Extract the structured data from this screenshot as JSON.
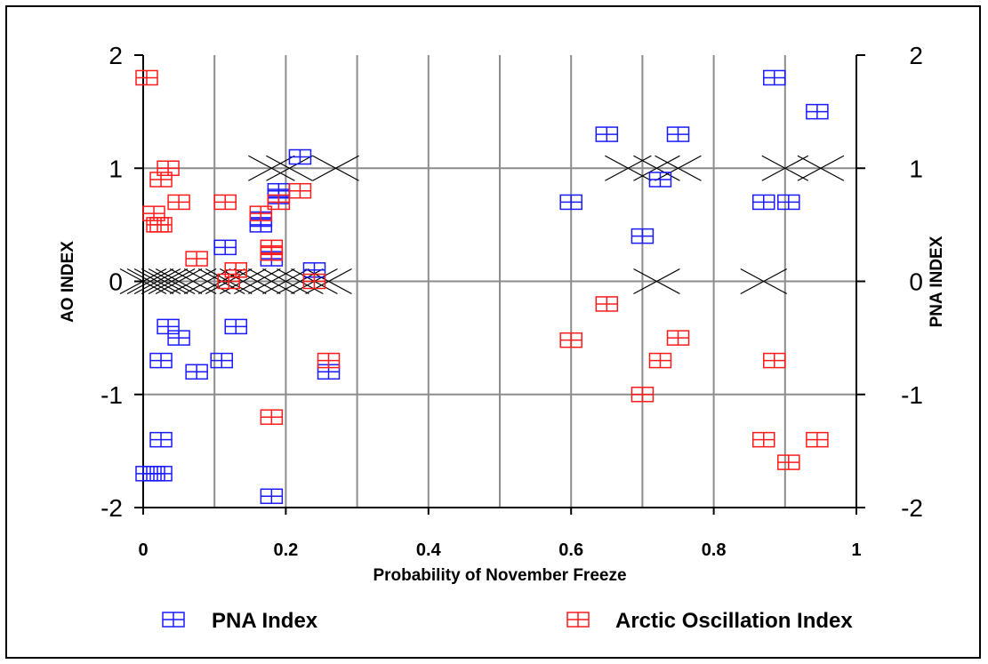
{
  "chart_data": {
    "type": "scatter",
    "xlabel": "Probability of November Freeze",
    "ylabel_left": "AO INDEX",
    "ylabel_right": "PNA INDEX",
    "xlim": [
      0,
      1
    ],
    "ylim": [
      -2,
      2
    ],
    "x_ticks": [
      "0",
      "0.2",
      "0.4",
      "0.6",
      "0.8",
      "1"
    ],
    "y_ticks": [
      "-2",
      "-1",
      "0",
      "1",
      "2"
    ],
    "grid": true,
    "legend_position": "bottom",
    "series": [
      {
        "name": "PNA Index",
        "marker": "boxed-plus",
        "color": "#1a1aff",
        "points": [
          [
            0.005,
            -1.7
          ],
          [
            0.015,
            -1.7
          ],
          [
            0.025,
            -1.7
          ],
          [
            0.025,
            -1.4
          ],
          [
            0.025,
            -0.7
          ],
          [
            0.035,
            -0.4
          ],
          [
            0.05,
            -0.5
          ],
          [
            0.075,
            -0.8
          ],
          [
            0.11,
            -0.7
          ],
          [
            0.115,
            0.3
          ],
          [
            0.13,
            -0.4
          ],
          [
            0.165,
            0.5
          ],
          [
            0.165,
            0.55
          ],
          [
            0.18,
            0.2
          ],
          [
            0.18,
            -1.9
          ],
          [
            0.19,
            0.75
          ],
          [
            0.19,
            0.8
          ],
          [
            0.22,
            1.1
          ],
          [
            0.24,
            0.1
          ],
          [
            0.26,
            -0.8
          ],
          [
            0.6,
            0.7
          ],
          [
            0.65,
            1.3
          ],
          [
            0.7,
            0.4
          ],
          [
            0.725,
            0.9
          ],
          [
            0.75,
            1.3
          ],
          [
            0.87,
            0.7
          ],
          [
            0.885,
            1.8
          ],
          [
            0.905,
            0.7
          ],
          [
            0.945,
            1.5
          ]
        ]
      },
      {
        "name": "Arctic Oscillation Index",
        "marker": "boxed-plus",
        "color": "#ff1a1a",
        "points": [
          [
            0.005,
            1.8
          ],
          [
            0.015,
            0.6
          ],
          [
            0.02,
            0.5
          ],
          [
            0.025,
            0.9
          ],
          [
            0.025,
            0.5
          ],
          [
            0.035,
            1.0
          ],
          [
            0.05,
            0.7
          ],
          [
            0.075,
            0.2
          ],
          [
            0.115,
            0.7
          ],
          [
            0.12,
            0.0
          ],
          [
            0.13,
            0.1
          ],
          [
            0.165,
            0.6
          ],
          [
            0.18,
            0.3
          ],
          [
            0.18,
            0.25
          ],
          [
            0.18,
            -1.2
          ],
          [
            0.19,
            0.7
          ],
          [
            0.22,
            0.8
          ],
          [
            0.24,
            0.0
          ],
          [
            0.26,
            -0.7
          ],
          [
            0.6,
            -0.52
          ],
          [
            0.65,
            -0.2
          ],
          [
            0.7,
            -1.0
          ],
          [
            0.725,
            -0.7
          ],
          [
            0.75,
            -0.5
          ],
          [
            0.87,
            -1.4
          ],
          [
            0.885,
            -0.7
          ],
          [
            0.905,
            -1.6
          ],
          [
            0.945,
            -1.4
          ]
        ]
      },
      {
        "name": "",
        "marker": "x",
        "color": "#000000",
        "points": [
          [
            0.0,
            0
          ],
          [
            0.01,
            0
          ],
          [
            0.02,
            0
          ],
          [
            0.03,
            0
          ],
          [
            0.04,
            0
          ],
          [
            0.05,
            0
          ],
          [
            0.07,
            0
          ],
          [
            0.09,
            0
          ],
          [
            0.11,
            0
          ],
          [
            0.12,
            0
          ],
          [
            0.14,
            0
          ],
          [
            0.16,
            0
          ],
          [
            0.18,
            0
          ],
          [
            0.2,
            0
          ],
          [
            0.22,
            0
          ],
          [
            0.24,
            0
          ],
          [
            0.26,
            0
          ],
          [
            0.18,
            1
          ],
          [
            0.205,
            1
          ],
          [
            0.27,
            1
          ],
          [
            0.68,
            1
          ],
          [
            0.72,
            1
          ],
          [
            0.75,
            1
          ],
          [
            0.72,
            0
          ],
          [
            0.87,
            0
          ],
          [
            0.9,
            1
          ],
          [
            0.95,
            1
          ]
        ]
      }
    ]
  }
}
